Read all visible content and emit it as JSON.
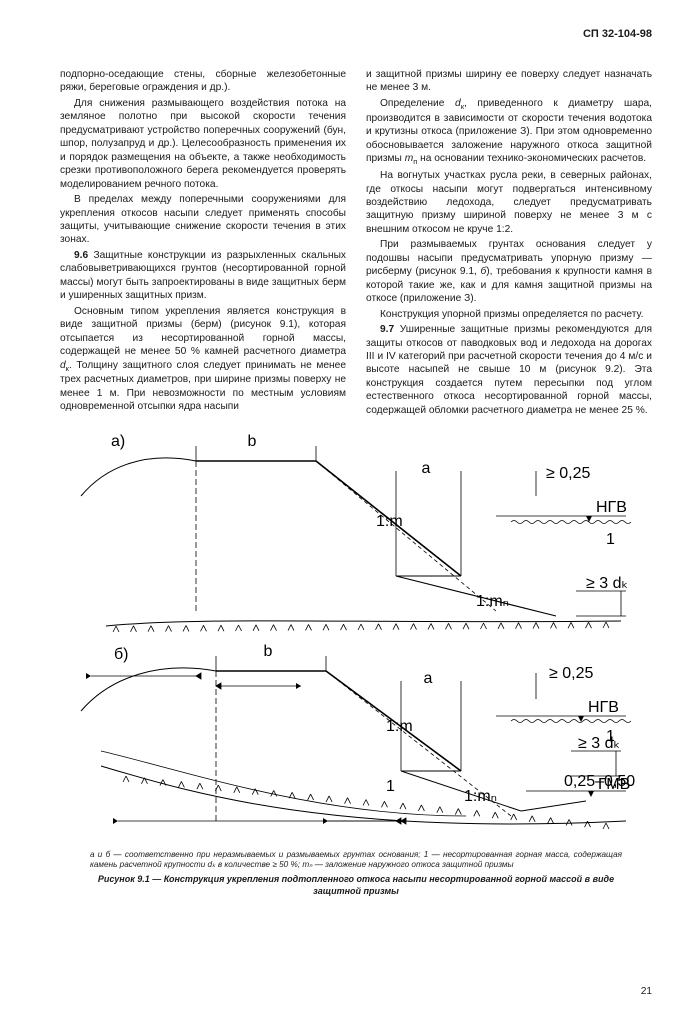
{
  "docCode": "СП 32-104-98",
  "pageNumber": "21",
  "paragraphs": [
    {
      "cls": "noi",
      "html": "подпорно-оседающие стены, сборные железобе­тонные ряжи, береговые ограждения и др.)."
    },
    {
      "html": "Для снижения размывающего воздействия потока на земляное полотно при высокой скоро­сти течения предусматривают устройство попереч­ных сооружений (бун, шпор, полузапруд и др.). Целесообразность применения их и порядок раз­мещения на объекте, а также необходимость срез­ки противоположного берега рекомендуется про­верять моделированием речного потока."
    },
    {
      "html": "В пределах между поперечными сооружения­ми для укрепления откосов насыпи следует при­менять способы защиты, учитывающие снижение скорости течения в этих зонах."
    },
    {
      "html": "<span class='b'>9.6</span> Защитные конструкции из разрыхленных скальных слабовыветривающихся грунтов (не­сортированной горной массы) могут быть запроек­тированы в виде защитных берм и уширенных за­щитных призм."
    },
    {
      "html": "Основным типом укрепления является кон­струкция в виде защитной призмы (берм) (рису­нок 9.1), которая отсыпается из несортирован­ной горной массы, содержащей не менее 50 % камней расчетного диаметра <span class='i'>d</span><span class='sub'>к</span>. Толщину защит­ного слоя следует принимать не менее трех рас­четных диаметров, при ширине призмы поверху не менее 1 м. При невозможности по местным условиям одновременной отсыпки ядра насыпи"
    },
    {
      "cls": "noi",
      "html": "и защитной призмы ширину ее поверху следует назначать не менее 3 м."
    },
    {
      "html": "Определение <span class='i'>d</span><span class='sub'>к</span>, приведенного к диаметру шара, производится в зависимости от скорости течения водотока и крутизны откоса (приложение З). При этом одновременно обосновывается за­ложение наружного откоса защитной призмы <span class='i'>m</span><span class='sub'>п</span> на основании технико-экономических расчетов."
    },
    {
      "html": "На вогнутых участках русла реки, в северных районах, где откосы насыпи могут подвергаться интенсивному воздействию ледохода, следует пре­дусматривать защитную призму шириной поверху не менее 3 м с внешним откосом не круче 1:2."
    },
    {
      "html": "При размываемых грунтах основания следует у подошвы насыпи предусматривать упорную приз­му — рисберму (рисунок 9.1, <span class='i'>б</span>), требования к круп­ности камня в которой такие же, как и для камня защитной призмы на откосе (приложение З)."
    },
    {
      "html": "Конструкция упорной призмы определяется по расчету."
    },
    {
      "html": "<span class='b'>9.7</span> Уширенные защитные призмы рекоменду­ются для защиты откосов от паводковых вод и ле­дохода на дорогах III и IV категорий при расчетной скорости течения до 4 м/с и высоте насыпей не свыше 10 м (рисунок 9.2). Эта конструкция созда­ется путем пересыпки под углом естественного откоса несортированной горной массы, содержа­щей обломки расчетного диаметра не менее 25 %."
    }
  ],
  "figure": {
    "labels": {
      "a": "а)",
      "b": "б)",
      "top_b": "b",
      "top_a": "a",
      "slope_1m": "1:m",
      "slope_1mn": "1:mₙ",
      "hgv": "НГВ",
      "gmv": "ГМВ",
      "ge025": "≥ 0,25",
      "ge3dk": "≥ 3 dₖ",
      "one": "1",
      "range": "0,25–0,50"
    },
    "style": {
      "stroke": "#000",
      "stroke_thin": "0.9",
      "stroke_bold": "1.6",
      "font": "italic 10px Helvetica, Arial, sans-serif",
      "font_small": "9px Helvetica, Arial, sans-serif",
      "font_plain": "10px Helvetica, Arial, sans-serif"
    }
  },
  "figNote": "а и б — соответственно при неразмываемых и размываемых грунтах основания; 1 — несортированная горная масса, содержащая камень расчетной крупности dₖ в количестве ≥ 50 %; mₙ — заложение наружного откоса защитной призмы",
  "figCaption": "Рисунок 9.1 — Конструкция укрепления подтопленного откоса насыпи несортированной горной массой в виде защитной призмы"
}
